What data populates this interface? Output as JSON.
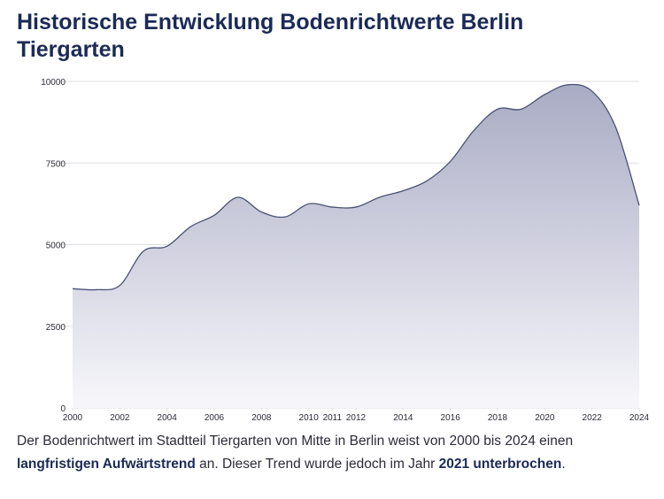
{
  "title": "Historische Entwicklung Bodenrichtwerte Berlin Tiergarten",
  "description": {
    "part1": "Der Bodenrichtwert im Stadtteil Tiergarten von Mitte in Berlin weist von 2000 bis 2024 einen ",
    "highlight1": "langfristigen Aufwärtstrend",
    "part2": " an. Dieser Trend wurde jedoch im Jahr ",
    "highlight2": "2021 unterbrochen",
    "part3": "."
  },
  "colors": {
    "line": "#4a5275",
    "area_top": "#a9abc4",
    "area_bottom": "#f7f7fb",
    "grid": "#dddde3",
    "text": "#2b2b38",
    "title": "#1b2a56"
  },
  "chart_data": {
    "type": "area",
    "title": "Historische Entwicklung Bodenrichtwerte Berlin Tiergarten",
    "xlabel": "",
    "ylabel": "",
    "x": [
      2000,
      2001,
      2002,
      2003,
      2004,
      2005,
      2006,
      2007,
      2008,
      2009,
      2010,
      2011,
      2012,
      2013,
      2014,
      2015,
      2016,
      2017,
      2018,
      2019,
      2020,
      2021,
      2022,
      2023,
      2024
    ],
    "values": [
      3650,
      3620,
      3750,
      4800,
      4950,
      5550,
      5900,
      6450,
      6000,
      5850,
      6250,
      6150,
      6150,
      6450,
      6650,
      6950,
      7550,
      8500,
      9150,
      9150,
      9600,
      9900,
      9700,
      8600,
      6200
    ],
    "xticks": [
      "2000",
      "2002",
      "2004",
      "2006",
      "2008",
      "2010",
      "2011",
      "2012",
      "2014",
      "2016",
      "2018",
      "2020",
      "2022",
      "2024"
    ],
    "yticks": [
      "0",
      "2500",
      "5000",
      "7500",
      "10000"
    ],
    "ylim": [
      0,
      10000
    ],
    "xlim": [
      2000,
      2024
    ],
    "grid": true,
    "legend": "none"
  }
}
